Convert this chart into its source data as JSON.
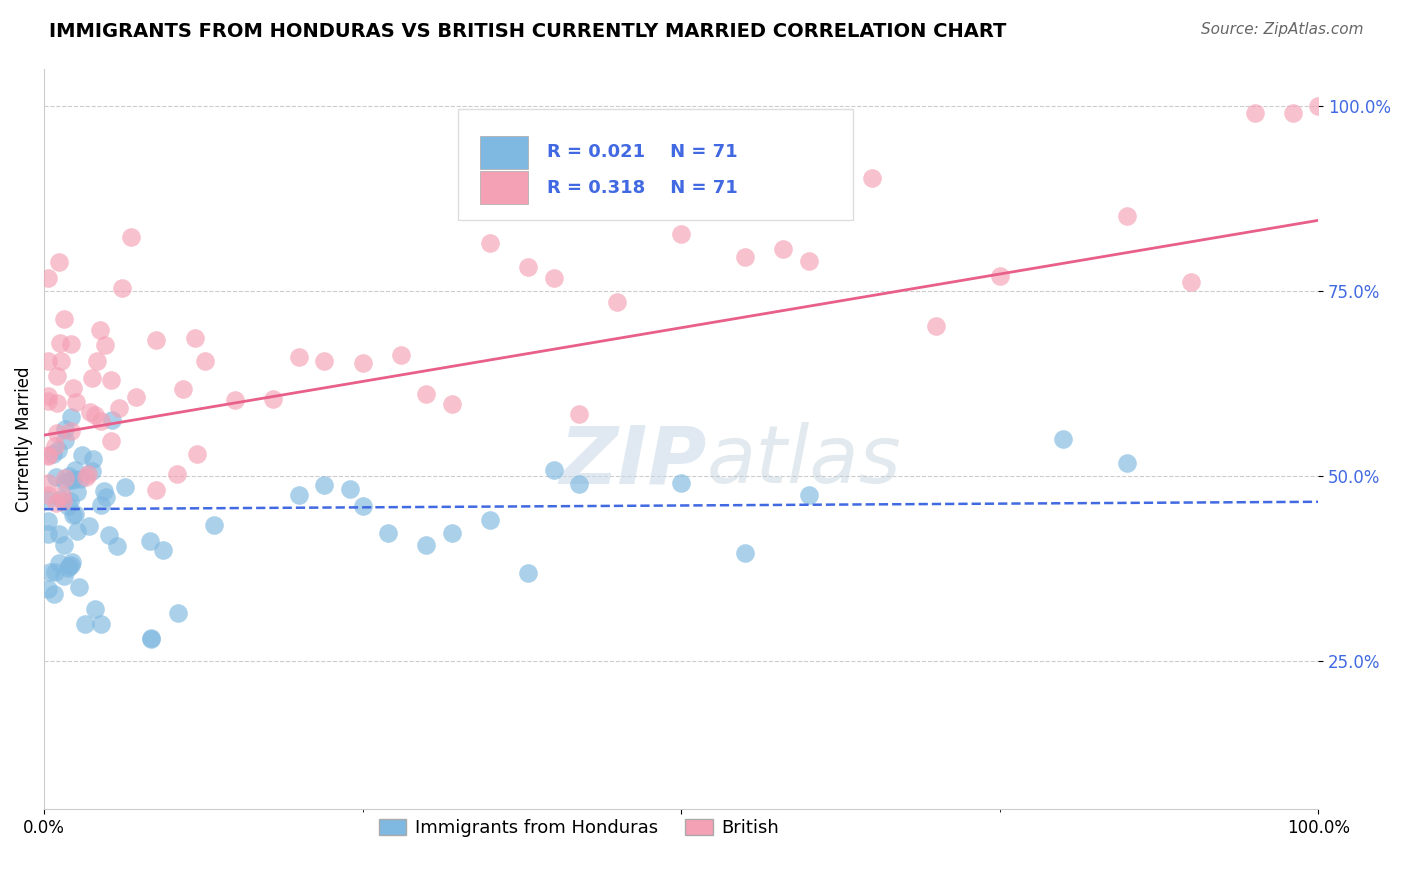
{
  "title": "IMMIGRANTS FROM HONDURAS VS BRITISH CURRENTLY MARRIED CORRELATION CHART",
  "source": "Source: ZipAtlas.com",
  "ylabel": "Currently Married",
  "xlim": [
    0,
    1
  ],
  "ylim": [
    0.05,
    1.05
  ],
  "ytick_labels": [
    "25.0%",
    "50.0%",
    "75.0%",
    "100.0%"
  ],
  "ytick_values": [
    0.25,
    0.5,
    0.75,
    1.0
  ],
  "legend_r1": "R = 0.021",
  "legend_n1": "N = 71",
  "legend_r2": "R = 0.318",
  "legend_n2": "N = 71",
  "color_blue": "#7fb8e0",
  "color_pink": "#f4a0b5",
  "line_blue": "#4169e1",
  "line_pink": "#e8608a",
  "watermark_zip": "ZIP",
  "watermark_atlas": "atlas",
  "blue_line_start": 0.455,
  "blue_line_end": 0.465,
  "pink_line_start": 0.555,
  "pink_line_end": 0.845,
  "grid_color": "#cccccc",
  "grid_style": "--",
  "title_fontsize": 14,
  "source_fontsize": 11,
  "tick_fontsize": 12,
  "legend_fontsize": 13
}
